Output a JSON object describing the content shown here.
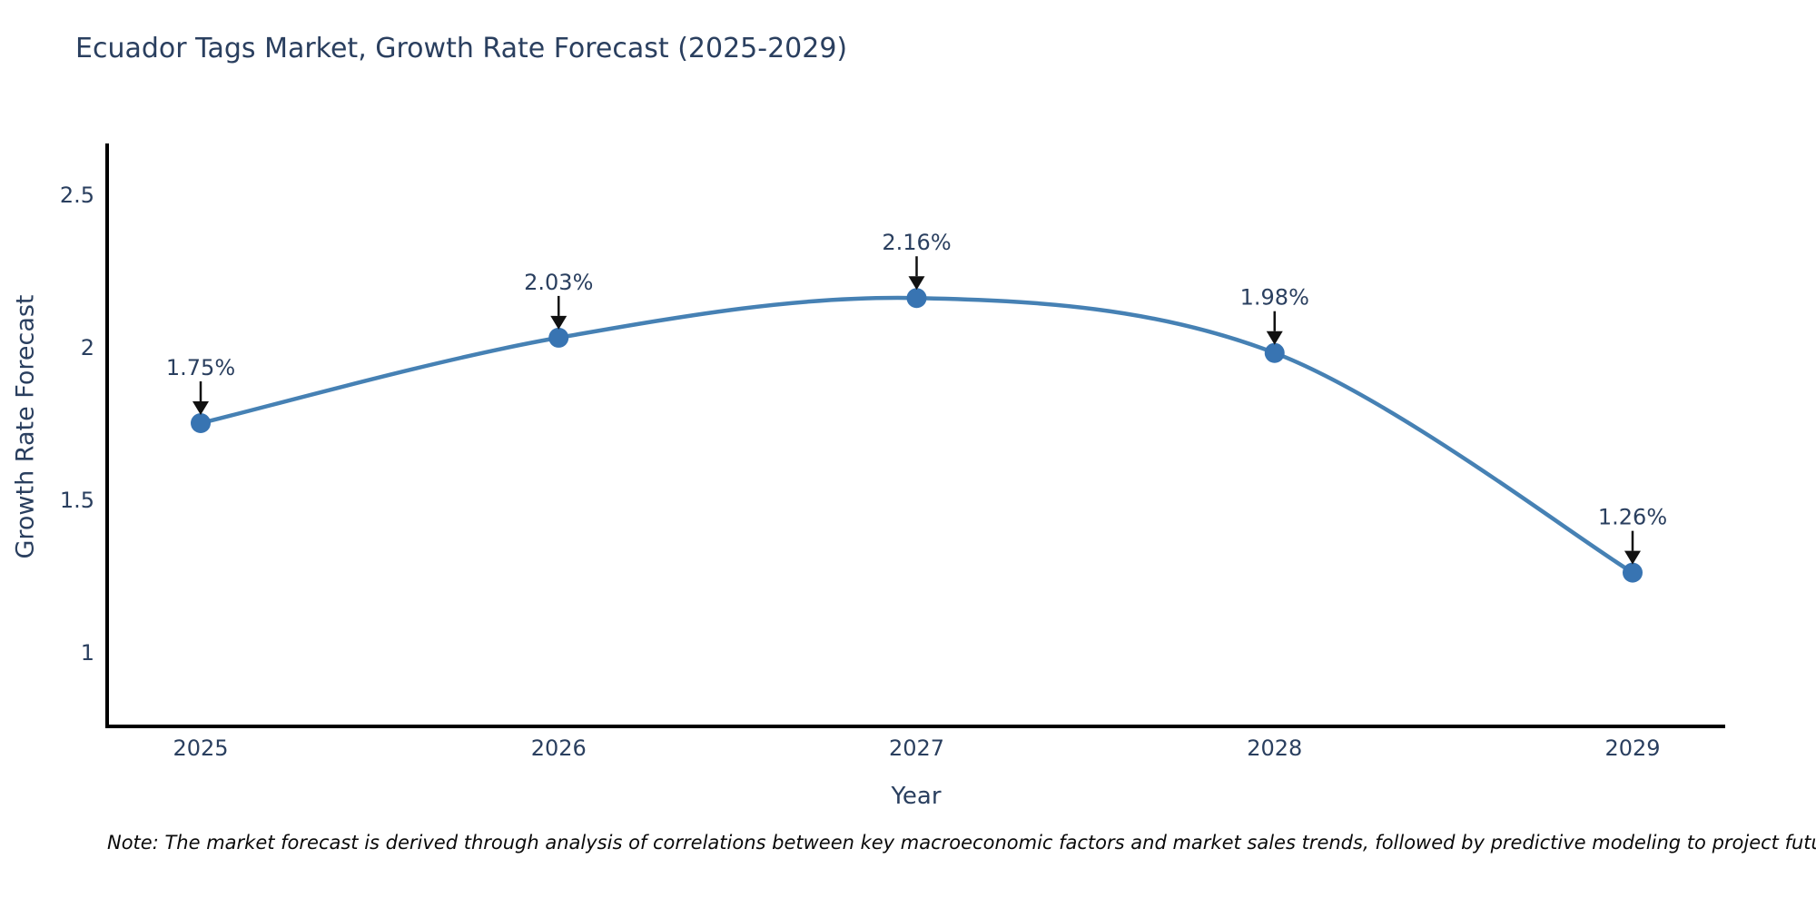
{
  "chart_data": {
    "type": "line",
    "title": "Ecuador Tags Market, Growth Rate Forecast (2025-2029)",
    "xlabel": "Year",
    "ylabel": "Growth Rate Forecast",
    "categories": [
      "2025",
      "2026",
      "2027",
      "2028",
      "2029"
    ],
    "values": [
      1.75,
      2.03,
      2.16,
      1.98,
      1.26
    ],
    "point_labels": [
      "1.75%",
      "2.03%",
      "2.16%",
      "1.98%",
      "1.26%"
    ],
    "yticks": [
      2.5,
      2,
      1.5,
      1
    ],
    "ylim": [
      0.76,
      2.66
    ],
    "grid": false,
    "legend": "none",
    "smooth": true,
    "line_color": "#4681b4",
    "marker_color": "#3874b2",
    "annotation_color": "#111111",
    "text_color": "#2a3f5f",
    "axis_color": "#000000"
  },
  "note": {
    "text": "Note: The market forecast is derived through analysis of correlations between key macroeconomic factors and market sales trends, followed by predictive modeling to project future sales"
  }
}
